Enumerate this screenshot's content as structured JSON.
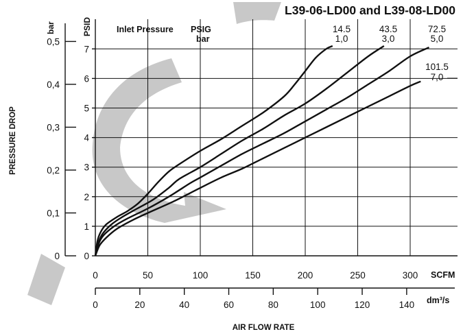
{
  "chart_data": {
    "type": "line",
    "title": "L39-06-LD00 and L39-08-LD00",
    "xlabel": "AIR FLOW RATE",
    "ylabel": "PRESSURE DROP",
    "x_primary": {
      "unit": "SCFM",
      "ticks": [
        0,
        50,
        100,
        150,
        200,
        250,
        300
      ],
      "range": [
        0,
        330
      ]
    },
    "x_secondary": {
      "unit": "dm³/s",
      "ticks": [
        0,
        20,
        40,
        60,
        80,
        100,
        120,
        140
      ]
    },
    "y_primary": {
      "unit": "PSID",
      "ticks": [
        0,
        1,
        2,
        3,
        4,
        5,
        6,
        7
      ],
      "range": [
        0,
        7.2
      ]
    },
    "y_secondary": {
      "unit": "bar",
      "ticks": [
        "0",
        "0,1",
        "0,2",
        "0,3",
        "0,4",
        "0,5"
      ]
    },
    "legend": {
      "title": "Inlet Pressure",
      "psig_label": "PSIG",
      "bar_label": "bar"
    },
    "grid": true,
    "series": [
      {
        "psig": "14.5",
        "bar": "1,0",
        "points": [
          [
            0,
            0
          ],
          [
            2,
            0.5
          ],
          [
            5,
            0.8
          ],
          [
            10,
            1.05
          ],
          [
            20,
            1.3
          ],
          [
            30,
            1.5
          ],
          [
            40,
            1.75
          ],
          [
            50,
            2.1
          ],
          [
            60,
            2.5
          ],
          [
            70,
            2.85
          ],
          [
            80,
            3.1
          ],
          [
            100,
            3.55
          ],
          [
            120,
            3.95
          ],
          [
            140,
            4.4
          ],
          [
            160,
            4.85
          ],
          [
            180,
            5.4
          ],
          [
            190,
            5.8
          ],
          [
            200,
            6.25
          ],
          [
            210,
            6.7
          ],
          [
            220,
            7.0
          ],
          [
            226,
            7.1
          ]
        ]
      },
      {
        "psig": "43.5",
        "bar": "3,0",
        "points": [
          [
            0,
            0
          ],
          [
            3,
            0.45
          ],
          [
            7,
            0.75
          ],
          [
            15,
            1.05
          ],
          [
            25,
            1.3
          ],
          [
            40,
            1.6
          ],
          [
            55,
            1.9
          ],
          [
            70,
            2.3
          ],
          [
            80,
            2.6
          ],
          [
            100,
            3.0
          ],
          [
            120,
            3.45
          ],
          [
            140,
            3.9
          ],
          [
            160,
            4.3
          ],
          [
            180,
            4.75
          ],
          [
            200,
            5.15
          ],
          [
            220,
            5.65
          ],
          [
            240,
            6.2
          ],
          [
            260,
            6.75
          ],
          [
            275,
            7.1
          ]
        ]
      },
      {
        "psig": "72.5",
        "bar": "5,0",
        "points": [
          [
            0,
            0
          ],
          [
            3,
            0.4
          ],
          [
            8,
            0.7
          ],
          [
            18,
            1.0
          ],
          [
            30,
            1.25
          ],
          [
            50,
            1.6
          ],
          [
            70,
            2.0
          ],
          [
            90,
            2.45
          ],
          [
            100,
            2.65
          ],
          [
            120,
            3.05
          ],
          [
            140,
            3.45
          ],
          [
            160,
            3.8
          ],
          [
            180,
            4.15
          ],
          [
            200,
            4.55
          ],
          [
            220,
            4.95
          ],
          [
            240,
            5.35
          ],
          [
            260,
            5.8
          ],
          [
            280,
            6.25
          ],
          [
            300,
            6.75
          ],
          [
            318,
            7.05
          ]
        ]
      },
      {
        "psig": "101.5",
        "bar": "7,0",
        "points": [
          [
            0,
            0
          ],
          [
            4,
            0.35
          ],
          [
            10,
            0.6
          ],
          [
            20,
            0.9
          ],
          [
            35,
            1.2
          ],
          [
            50,
            1.45
          ],
          [
            75,
            1.85
          ],
          [
            100,
            2.3
          ],
          [
            120,
            2.65
          ],
          [
            140,
            2.95
          ],
          [
            160,
            3.3
          ],
          [
            180,
            3.65
          ],
          [
            200,
            4.0
          ],
          [
            220,
            4.35
          ],
          [
            240,
            4.7
          ],
          [
            260,
            5.05
          ],
          [
            280,
            5.4
          ],
          [
            300,
            5.75
          ],
          [
            310,
            5.9
          ]
        ]
      }
    ]
  }
}
